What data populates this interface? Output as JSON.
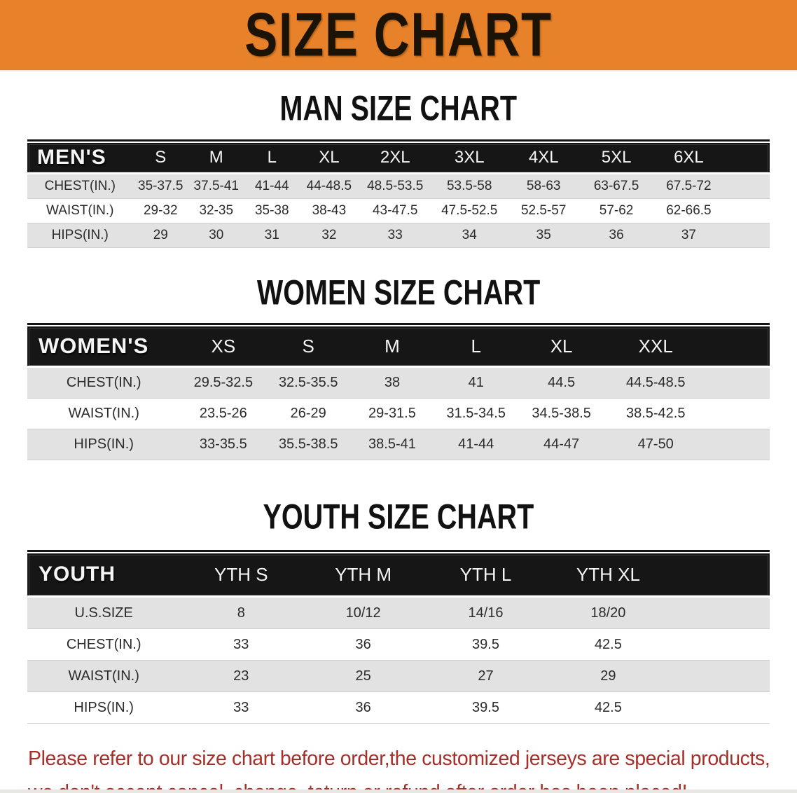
{
  "banner": {
    "title": "SIZE CHART",
    "bg_color": "#E8822A",
    "text_color": "#1C1307"
  },
  "sections": [
    {
      "id": "men",
      "heading": "MAN SIZE CHART",
      "table": {
        "header_label": "MEN'S",
        "columns": [
          "S",
          "M",
          "L",
          "XL",
          "2XL",
          "3XL",
          "4XL",
          "5XL",
          "6XL"
        ],
        "rows": [
          {
            "label": "CHEST(IN.)",
            "values": [
              "35-37.5",
              "37.5-41",
              "41-44",
              "44-48.5",
              "48.5-53.5",
              "53.5-58",
              "58-63",
              "63-67.5",
              "67.5-72"
            ]
          },
          {
            "label": "WAIST(IN.)",
            "values": [
              "29-32",
              "32-35",
              "35-38",
              "38-43",
              "43-47.5",
              "47.5-52.5",
              "52.5-57",
              "57-62",
              "62-66.5"
            ]
          },
          {
            "label": "HIPS(IN.)",
            "values": [
              "29",
              "30",
              "31",
              "32",
              "33",
              "34",
              "35",
              "36",
              "37"
            ]
          }
        ]
      }
    },
    {
      "id": "women",
      "heading": "WOMEN SIZE CHART",
      "table": {
        "header_label": "WOMEN'S",
        "columns": [
          "XS",
          "S",
          "M",
          "L",
          "XL",
          "XXL"
        ],
        "rows": [
          {
            "label": "CHEST(IN.)",
            "values": [
              "29.5-32.5",
              "32.5-35.5",
              "38",
              "41",
              "44.5",
              "44.5-48.5"
            ]
          },
          {
            "label": "WAIST(IN.)",
            "values": [
              "23.5-26",
              "26-29",
              "29-31.5",
              "31.5-34.5",
              "34.5-38.5",
              "38.5-42.5"
            ]
          },
          {
            "label": "HIPS(IN.)",
            "values": [
              "33-35.5",
              "35.5-38.5",
              "38.5-41",
              "41-44",
              "44-47",
              "47-50"
            ]
          }
        ]
      }
    },
    {
      "id": "youth",
      "heading": "YOUTH SIZE CHART",
      "table": {
        "header_label": "YOUTH",
        "columns": [
          "YTH S",
          "YTH M",
          "YTH L",
          "YTH XL"
        ],
        "rows": [
          {
            "label": "U.S.SIZE",
            "values": [
              "8",
              "10/12",
              "14/16",
              "18/20"
            ]
          },
          {
            "label": "CHEST(IN.)",
            "values": [
              "33",
              "36",
              "39.5",
              "42.5"
            ]
          },
          {
            "label": "WAIST(IN.)",
            "values": [
              "23",
              "25",
              "27",
              "29"
            ]
          },
          {
            "label": "HIPS(IN.)",
            "values": [
              "33",
              "36",
              "39.5",
              "42.5"
            ]
          }
        ]
      }
    }
  ],
  "footer": {
    "lines": [
      "Please refer to our size chart before order,the customized jerseys are special products,",
      "we don't accept cancel, change, teturn or refund after order has been placed!"
    ],
    "text_color": "#A5302A"
  },
  "colors": {
    "banner_bg": "#E8822A",
    "table_header_bg": "#161616",
    "row_alt_bg": "#E2E2E2",
    "notice_red": "#A5302A"
  }
}
